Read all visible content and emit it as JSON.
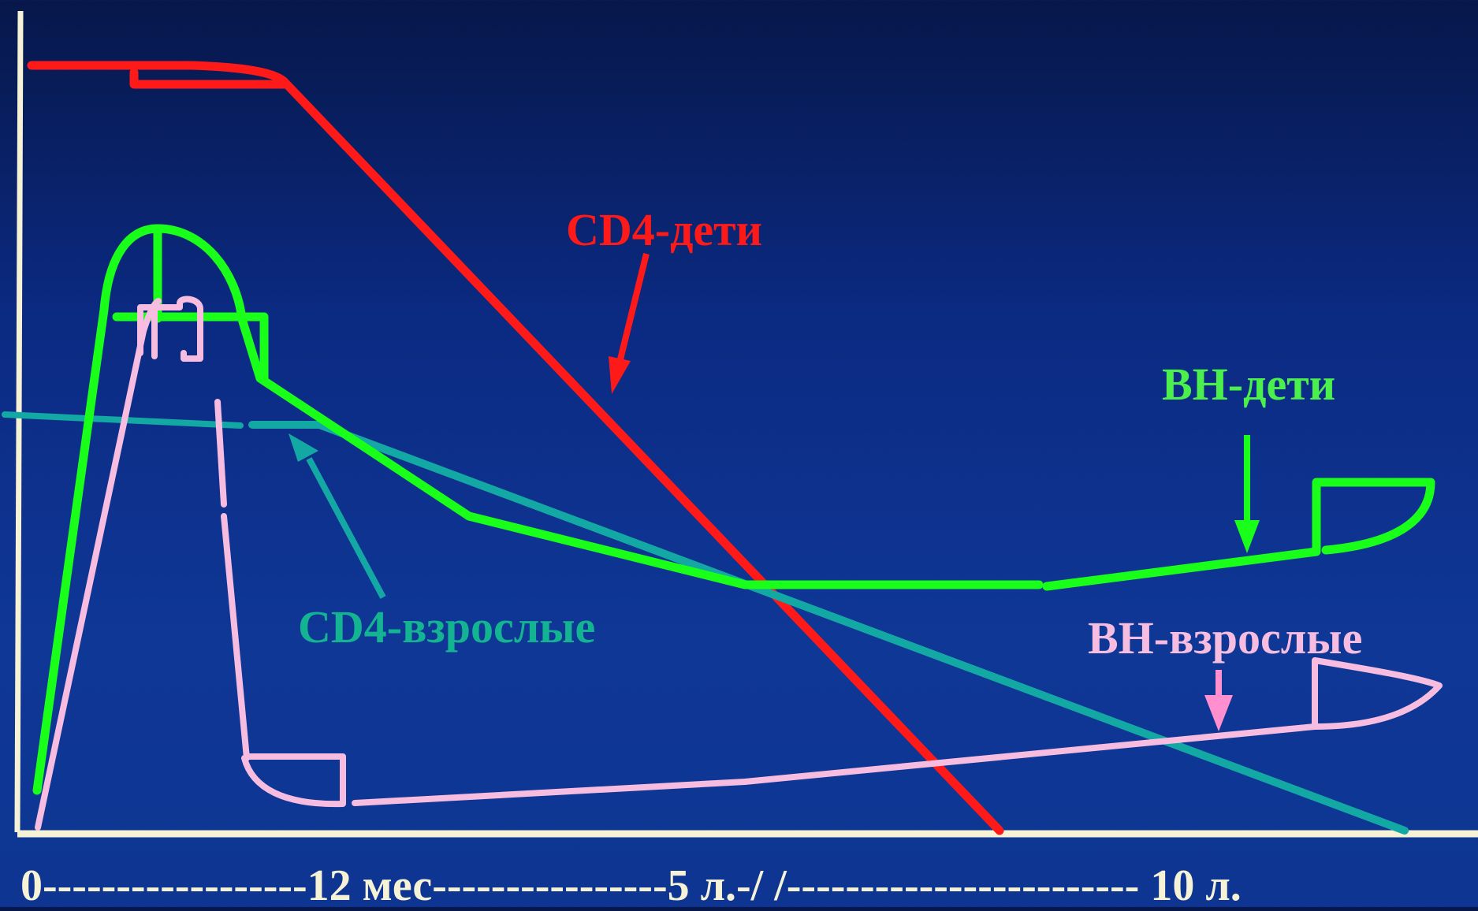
{
  "labels": {
    "cd4_children": "CD4-дети",
    "vl_children": "ВН-дети",
    "cd4_adults": "CD4-взрослые",
    "vl_adults": "ВН-взрослые"
  },
  "x_axis_text": "0------------------12 мес----------------5 л.-/ /------------------------ 10 л.",
  "colors": {
    "background": "#0e3592",
    "axis": "#f6f2d6",
    "cd4_children": "#ff1a1a",
    "vl_children": "#1aff1a",
    "cd4_adults": "#14a8a4",
    "vl_adults": "#f6bde0",
    "vl_adults_arrow": "#ff8fcf"
  }
}
